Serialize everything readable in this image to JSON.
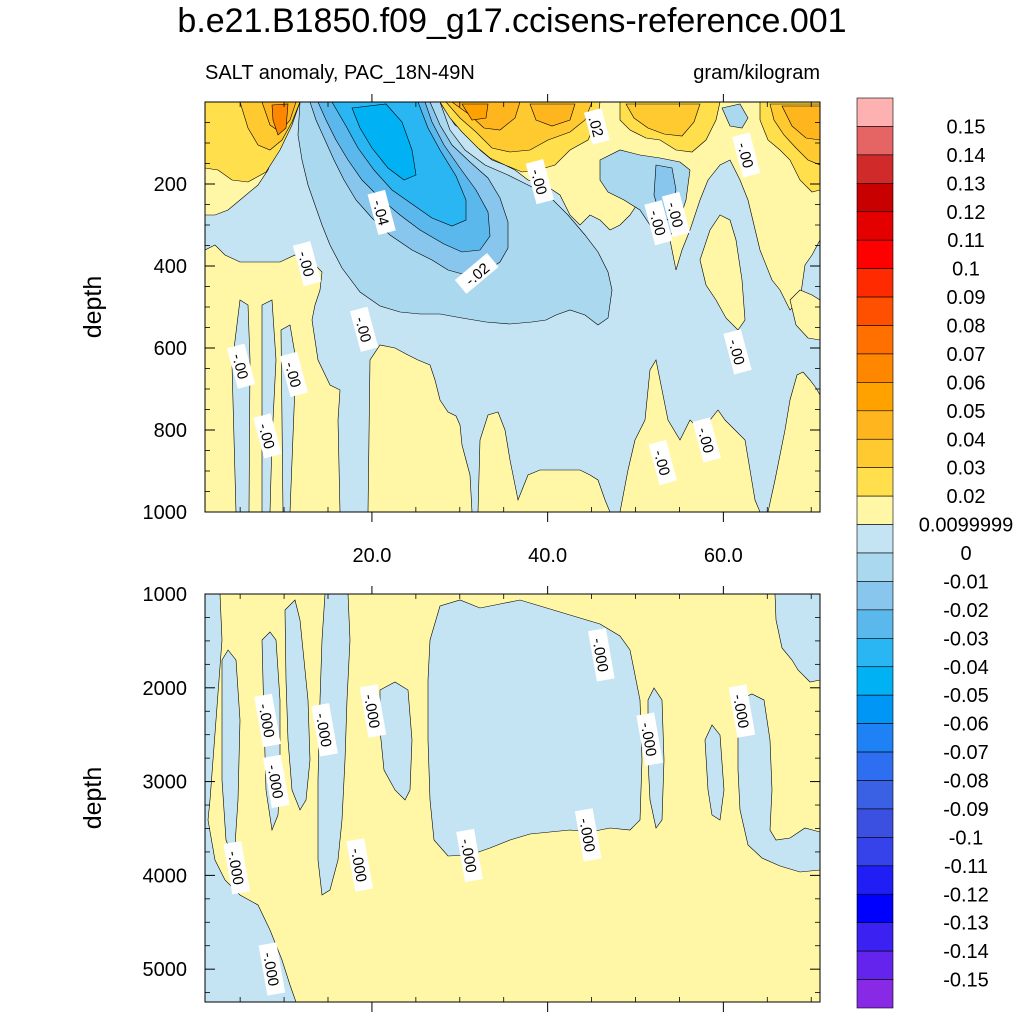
{
  "title": "b.e21.B1850.f09_g17.ccisens-reference.001",
  "subtitle_left": "SALT anomaly, PAC_18N-49N",
  "subtitle_right": "gram/kilogram",
  "chart_data": [
    {
      "type": "heatmap",
      "panel": "upper",
      "ylabel": "depth",
      "ylim": [
        0,
        1000
      ],
      "y_reversed": true,
      "yticks": [
        200,
        400,
        600,
        800,
        1000
      ],
      "xlim": [
        1,
        71
      ],
      "xticks": [
        "20.0",
        "40.0",
        "60.0"
      ],
      "xtick_values": [
        20,
        40,
        60
      ],
      "contour_labels": [
        {
          "text": ".02",
          "x": 45.5,
          "y": 60
        },
        {
          "text": "-.00",
          "x": 62.5,
          "y": 130
        },
        {
          "text": "-.00",
          "x": 39,
          "y": 195
        },
        {
          "text": "-.04",
          "x": 21,
          "y": 270
        },
        {
          "text": "-.00",
          "x": 52.5,
          "y": 295
        },
        {
          "text": "-.00",
          "x": 54.5,
          "y": 275
        },
        {
          "text": "-.00",
          "x": 12.5,
          "y": 395
        },
        {
          "text": "-.02",
          "x": 32,
          "y": 420
        },
        {
          "text": "-.00",
          "x": 19,
          "y": 555
        },
        {
          "text": "-.00",
          "x": 61.5,
          "y": 610
        },
        {
          "text": "-.00",
          "x": 5,
          "y": 645
        },
        {
          "text": "-.00",
          "x": 11,
          "y": 665
        },
        {
          "text": "-.00",
          "x": 8,
          "y": 815
        },
        {
          "text": "-.00",
          "x": 58,
          "y": 825
        },
        {
          "text": "-.00",
          "x": 53,
          "y": 880
        }
      ]
    },
    {
      "type": "heatmap",
      "panel": "lower",
      "ylabel": "depth",
      "ylim": [
        1000,
        5350
      ],
      "y_reversed": true,
      "yticks": [
        1000,
        2000,
        3000,
        4000,
        5000
      ],
      "xlim": [
        1,
        71
      ],
      "contour_labels": [
        {
          "text": "-.000",
          "x": 46,
          "y": 1650
        },
        {
          "text": "-.000",
          "x": 8,
          "y": 2350
        },
        {
          "text": "-.000",
          "x": 14.5,
          "y": 2450
        },
        {
          "text": "-.000",
          "x": 20,
          "y": 2250
        },
        {
          "text": "-.000",
          "x": 62,
          "y": 2250
        },
        {
          "text": "-.000",
          "x": 51.5,
          "y": 2550
        },
        {
          "text": "-.000",
          "x": 9,
          "y": 3000
        },
        {
          "text": "-.000",
          "x": 44.5,
          "y": 3570
        },
        {
          "text": "-.000",
          "x": 31,
          "y": 3790
        },
        {
          "text": "-.000",
          "x": 18.5,
          "y": 3890
        },
        {
          "text": "-.000",
          "x": 4.5,
          "y": 3920
        },
        {
          "text": "-.000",
          "x": 8.5,
          "y": 5000
        }
      ]
    }
  ],
  "colorbar": {
    "labels": [
      "0.15",
      "0.14",
      "0.13",
      "0.12",
      "0.11",
      "0.1",
      "0.09",
      "0.08",
      "0.07",
      "0.06",
      "0.05",
      "0.04",
      "0.03",
      "0.02",
      "0.0099999",
      "0",
      "-0.01",
      "-0.02",
      "-0.03",
      "-0.04",
      "-0.05",
      "-0.06",
      "-0.07",
      "-0.08",
      "-0.09",
      "-0.1",
      "-0.11",
      "-0.12",
      "-0.13",
      "-0.14",
      "-0.15"
    ],
    "colors": [
      "#fdb1b1",
      "#e56464",
      "#d02a2a",
      "#c80000",
      "#e50000",
      "#ff0000",
      "#ff2a00",
      "#ff5000",
      "#ff7000",
      "#ff8700",
      "#ffa200",
      "#ffb61e",
      "#ffca30",
      "#ffe04c",
      "#fff7a5",
      "#c5e4f3",
      "#a9d8ef",
      "#88c6ee",
      "#5bb8ec",
      "#2ab6f3",
      "#00b1f4",
      "#0096f5",
      "#1e82f5",
      "#2d6ff0",
      "#3a60e3",
      "#3b4fe0",
      "#3643ea",
      "#1e1ef5",
      "#0000ff",
      "#3c21f3",
      "#6524ee",
      "#882ae5"
    ]
  }
}
